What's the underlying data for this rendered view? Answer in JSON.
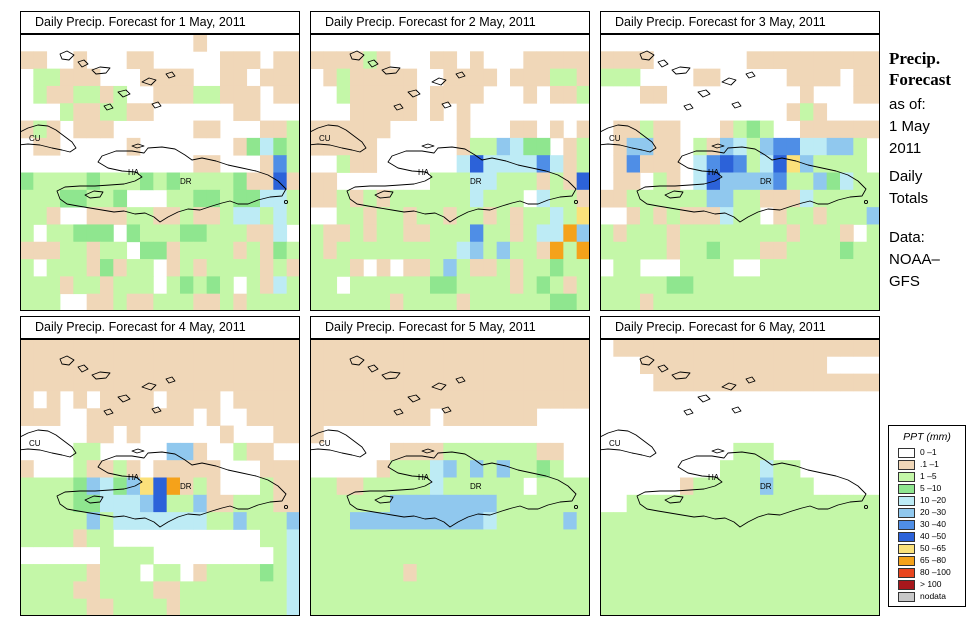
{
  "panels": [
    {
      "title": "Daily Precip. Forecast for  1 May, 2011"
    },
    {
      "title": "Daily Precip. Forecast for  2 May, 2011"
    },
    {
      "title": "Daily Precip. Forecast for  3 May, 2011"
    },
    {
      "title": "Daily Precip. Forecast for  4 May, 2011"
    },
    {
      "title": "Daily Precip. Forecast for  5 May, 2011"
    },
    {
      "title": "Daily Precip. Forecast for  6 May, 2011"
    }
  ],
  "map_labels": {
    "cuba": "CU",
    "haiti": "HA",
    "dominican_republic": "DR"
  },
  "sidebar": {
    "title_line1": "Precip.",
    "title_line2": "Forecast",
    "asof_label": "as of:",
    "date_line1": "1 May",
    "date_line2": "2011",
    "totals_line1": "Daily",
    "totals_line2": "Totals",
    "source_line1": "Data:",
    "source_line2": "NOAA–",
    "source_line3": "GFS"
  },
  "legend": {
    "title": "PPT (mm)",
    "classes": [
      {
        "label": "0 –1",
        "color": "#ffffff"
      },
      {
        "label": ".1 –1",
        "color": "#f0d7b8"
      },
      {
        "label": "1 –5",
        "color": "#c4f7a8"
      },
      {
        "label": "5 –10",
        "color": "#8fe68f"
      },
      {
        "label": "10 –20",
        "color": "#bdebf5"
      },
      {
        "label": "20 –30",
        "color": "#90c8ee"
      },
      {
        "label": "30 –40",
        "color": "#4f8ee6"
      },
      {
        "label": "40 –50",
        "color": "#2c62d9"
      },
      {
        "label": "50 –65",
        "color": "#fbe17a"
      },
      {
        "label": "65 –80",
        "color": "#f5a21a"
      },
      {
        "label": "80 –100",
        "color": "#e8451e"
      },
      {
        "label": "> 100",
        "color": "#a6171c"
      },
      {
        "label": "nodata",
        "color": "#c8c8c8"
      }
    ]
  },
  "forecast_grids": [
    [
      "000000000000010000000",
      "110010001100000111011",
      "022111000111100110111",
      "021122120011122111011",
      "000211221100000011000",
      "121011100000011000112",
      "011000001000000013432",
      "000000000000011000162",
      "322223222323222231171",
      "222332230002233233442",
      "221001112211211244242",
      "202233303222332221140",
      "111221220331222212132",
      "202221312201212222121",
      "222122122202323202142",
      "222001121122211212222"
    ],
    [
      "000000000000000000000",
      "111121000110100011111",
      "012111110011110111221",
      "002111110111100010112",
      "000111110101000000000",
      "111111000001000110101",
      "111110000001225433012",
      "002110000004744446412",
      "110000000222442221217",
      "112121222222422204221",
      "002212212212212122428",
      "211212211222622124495",
      "212222222224525221929",
      "222101011252112122322",
      "220222222332222123212",
      "222222122221222222332"
    ],
    [
      "000000000000000000000",
      "111100000001111111111",
      "222000011000001111011",
      "000110000000000100011",
      "000000000000001210000",
      "011211000123200111111",
      "015511021542566445520",
      "016111046762478522220",
      "011021047555562253422",
      "112222225522111422222",
      "001212111422012212225",
      "212221222222221222102",
      "222221223222112222322",
      "022000222200222222222",
      "222223322222222222222",
      "222122222222222222222"
    ],
    [
      "111111111111111111111",
      "111111111111111111111",
      "111111111111111111111",
      "101010111101111011111",
      "111001111111101001111",
      "000001101000000100011",
      "000022000005510021100",
      "100021121011111000111",
      "222235435879121000211",
      "222233444572251122211",
      "222225244444442252225",
      "222212200000000000224",
      "000000222200000000024",
      "222221222022012222324",
      "222211222211222222224",
      "222221122221222222224"
    ],
    [
      "111111111111111111111",
      "111111111111111111111",
      "111111111111111111111",
      "111111111111111111111",
      "111111111011111110000",
      "100000000000000000000",
      "000000111122222221100",
      "000001222452525223200",
      "221122222422222202222",
      "222222555555552222222",
      "222555555555542222252",
      "222222222222222222222",
      "222222222222222222222",
      "222222212222222222222",
      "222222222222222222222",
      "222222222222222222222"
    ],
    [
      "011111111111111111111",
      "000111111111111110000",
      "000011111111111111111",
      "000000000000000000000",
      "000000000000000000000",
      "000000000000000000000",
      "000000000022200000000",
      "000000000222422000000",
      "000000122222522200000",
      "002222222222222222222",
      "222222222222222222222",
      "222222222222222222222",
      "222222222222222222222",
      "222222222222222222222",
      "222222222222222222222",
      "222222222222222222222"
    ]
  ]
}
